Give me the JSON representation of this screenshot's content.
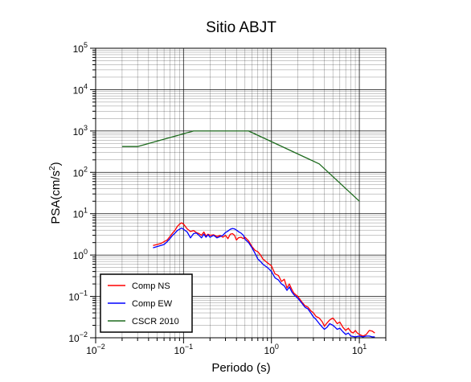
{
  "chart_data": {
    "type": "line",
    "title": "Sitio ABJT",
    "xlabel": "Periodo (s)",
    "ylabel_main": "PSA(cm/s",
    "ylabel_sup": "2",
    "ylabel_end": ")",
    "xscale": "log",
    "yscale": "log",
    "xlim": [
      0.01,
      20
    ],
    "ylim": [
      0.01,
      100000
    ],
    "grid": true,
    "legend_position": "bottom-left",
    "x_ticks": [
      {
        "base": "10",
        "exp": "−2",
        "value": 0.01
      },
      {
        "base": "10",
        "exp": "−1",
        "value": 0.1
      },
      {
        "base": "10",
        "exp": "0",
        "value": 1
      },
      {
        "base": "10",
        "exp": "1",
        "value": 10
      }
    ],
    "y_ticks": [
      {
        "base": "10",
        "exp": "−2",
        "value": 0.01
      },
      {
        "base": "10",
        "exp": "−1",
        "value": 0.1
      },
      {
        "base": "10",
        "exp": "0",
        "value": 1
      },
      {
        "base": "10",
        "exp": "1",
        "value": 10
      },
      {
        "base": "10",
        "exp": "2",
        "value": 100
      },
      {
        "base": "10",
        "exp": "3",
        "value": 1000
      },
      {
        "base": "10",
        "exp": "4",
        "value": 10000
      },
      {
        "base": "10",
        "exp": "5",
        "value": 100000
      }
    ],
    "series": [
      {
        "name": "Comp NS",
        "color": "#ff0000",
        "points": [
          [
            0.045,
            1.7
          ],
          [
            0.05,
            1.8
          ],
          [
            0.055,
            1.9
          ],
          [
            0.06,
            2.1
          ],
          [
            0.065,
            2.3
          ],
          [
            0.07,
            2.8
          ],
          [
            0.075,
            3.4
          ],
          [
            0.08,
            4.0
          ],
          [
            0.085,
            4.9
          ],
          [
            0.09,
            5.6
          ],
          [
            0.095,
            6.0
          ],
          [
            0.1,
            5.6
          ],
          [
            0.11,
            4.3
          ],
          [
            0.12,
            3.7
          ],
          [
            0.13,
            3.9
          ],
          [
            0.14,
            3.5
          ],
          [
            0.15,
            3.3
          ],
          [
            0.16,
            3.0
          ],
          [
            0.17,
            3.6
          ],
          [
            0.18,
            2.9
          ],
          [
            0.19,
            3.2
          ],
          [
            0.2,
            3.0
          ],
          [
            0.22,
            3.1
          ],
          [
            0.24,
            2.8
          ],
          [
            0.26,
            3.0
          ],
          [
            0.28,
            2.7
          ],
          [
            0.3,
            3.0
          ],
          [
            0.32,
            2.5
          ],
          [
            0.34,
            3.2
          ],
          [
            0.36,
            3.3
          ],
          [
            0.38,
            3.0
          ],
          [
            0.4,
            2.3
          ],
          [
            0.42,
            2.6
          ],
          [
            0.45,
            2.7
          ],
          [
            0.48,
            2.5
          ],
          [
            0.5,
            2.7
          ],
          [
            0.55,
            2.2
          ],
          [
            0.6,
            1.6
          ],
          [
            0.65,
            1.3
          ],
          [
            0.7,
            1.2
          ],
          [
            0.75,
            1.0
          ],
          [
            0.8,
            0.8
          ],
          [
            0.9,
            0.65
          ],
          [
            1.0,
            0.55
          ],
          [
            1.1,
            0.35
          ],
          [
            1.2,
            0.32
          ],
          [
            1.3,
            0.23
          ],
          [
            1.4,
            0.26
          ],
          [
            1.5,
            0.16
          ],
          [
            1.6,
            0.2
          ],
          [
            1.7,
            0.15
          ],
          [
            1.8,
            0.12
          ],
          [
            2.0,
            0.1
          ],
          [
            2.2,
            0.075
          ],
          [
            2.4,
            0.06
          ],
          [
            2.6,
            0.055
          ],
          [
            2.8,
            0.045
          ],
          [
            3.0,
            0.04
          ],
          [
            3.2,
            0.033
          ],
          [
            3.5,
            0.03
          ],
          [
            3.8,
            0.024
          ],
          [
            4.0,
            0.019
          ],
          [
            4.3,
            0.023
          ],
          [
            4.6,
            0.027
          ],
          [
            5.0,
            0.03
          ],
          [
            5.3,
            0.026
          ],
          [
            5.6,
            0.022
          ],
          [
            6.0,
            0.024
          ],
          [
            6.5,
            0.018
          ],
          [
            7.0,
            0.015
          ],
          [
            7.5,
            0.017
          ],
          [
            8.0,
            0.014
          ],
          [
            8.5,
            0.013
          ],
          [
            9.0,
            0.015
          ],
          [
            9.5,
            0.013
          ],
          [
            10,
            0.012
          ],
          [
            11,
            0.011
          ],
          [
            12,
            0.012
          ],
          [
            13,
            0.015
          ],
          [
            14,
            0.0145
          ],
          [
            15,
            0.013
          ]
        ]
      },
      {
        "name": "Comp EW",
        "color": "#0000ff",
        "points": [
          [
            0.045,
            1.5
          ],
          [
            0.05,
            1.6
          ],
          [
            0.055,
            1.7
          ],
          [
            0.06,
            1.8
          ],
          [
            0.065,
            2.1
          ],
          [
            0.07,
            2.5
          ],
          [
            0.075,
            3.0
          ],
          [
            0.08,
            3.4
          ],
          [
            0.085,
            3.9
          ],
          [
            0.09,
            4.2
          ],
          [
            0.095,
            4.5
          ],
          [
            0.1,
            4.2
          ],
          [
            0.11,
            3.6
          ],
          [
            0.12,
            2.6
          ],
          [
            0.13,
            3.3
          ],
          [
            0.14,
            3.4
          ],
          [
            0.15,
            3.0
          ],
          [
            0.16,
            2.6
          ],
          [
            0.17,
            3.2
          ],
          [
            0.18,
            2.7
          ],
          [
            0.19,
            3.1
          ],
          [
            0.2,
            2.7
          ],
          [
            0.22,
            3.0
          ],
          [
            0.24,
            2.6
          ],
          [
            0.26,
            2.8
          ],
          [
            0.28,
            3.0
          ],
          [
            0.3,
            3.5
          ],
          [
            0.32,
            3.8
          ],
          [
            0.34,
            4.2
          ],
          [
            0.36,
            4.4
          ],
          [
            0.38,
            4.3
          ],
          [
            0.4,
            4.0
          ],
          [
            0.42,
            3.7
          ],
          [
            0.45,
            3.4
          ],
          [
            0.48,
            3.0
          ],
          [
            0.5,
            2.4
          ],
          [
            0.55,
            2.0
          ],
          [
            0.6,
            1.5
          ],
          [
            0.65,
            1.1
          ],
          [
            0.7,
            0.8
          ],
          [
            0.75,
            0.7
          ],
          [
            0.8,
            0.6
          ],
          [
            0.9,
            0.5
          ],
          [
            1.0,
            0.4
          ],
          [
            1.1,
            0.28
          ],
          [
            1.2,
            0.25
          ],
          [
            1.3,
            0.2
          ],
          [
            1.4,
            0.18
          ],
          [
            1.5,
            0.14
          ],
          [
            1.6,
            0.17
          ],
          [
            1.7,
            0.13
          ],
          [
            1.8,
            0.11
          ],
          [
            2.0,
            0.09
          ],
          [
            2.2,
            0.07
          ],
          [
            2.4,
            0.055
          ],
          [
            2.6,
            0.05
          ],
          [
            2.8,
            0.04
          ],
          [
            3.0,
            0.032
          ],
          [
            3.2,
            0.028
          ],
          [
            3.5,
            0.022
          ],
          [
            3.8,
            0.018
          ],
          [
            4.0,
            0.016
          ],
          [
            4.3,
            0.018
          ],
          [
            4.6,
            0.022
          ],
          [
            5.0,
            0.02
          ],
          [
            5.3,
            0.018
          ],
          [
            5.6,
            0.016
          ],
          [
            6.0,
            0.017
          ],
          [
            6.5,
            0.014
          ],
          [
            7.0,
            0.012
          ],
          [
            7.5,
            0.013
          ],
          [
            8.0,
            0.011
          ],
          [
            9.0,
            0.0105
          ],
          [
            10,
            0.011
          ],
          [
            11,
            0.0105
          ],
          [
            12,
            0.011
          ],
          [
            13,
            0.011
          ],
          [
            14,
            0.0105
          ],
          [
            15,
            0.0105
          ]
        ]
      },
      {
        "name": "CSCR 2010",
        "color": "#1e6b1e",
        "points": [
          [
            0.02,
            420
          ],
          [
            0.03,
            420
          ],
          [
            0.13,
            1000
          ],
          [
            0.55,
            1000
          ],
          [
            3.5,
            160
          ],
          [
            10,
            20
          ]
        ]
      }
    ]
  }
}
